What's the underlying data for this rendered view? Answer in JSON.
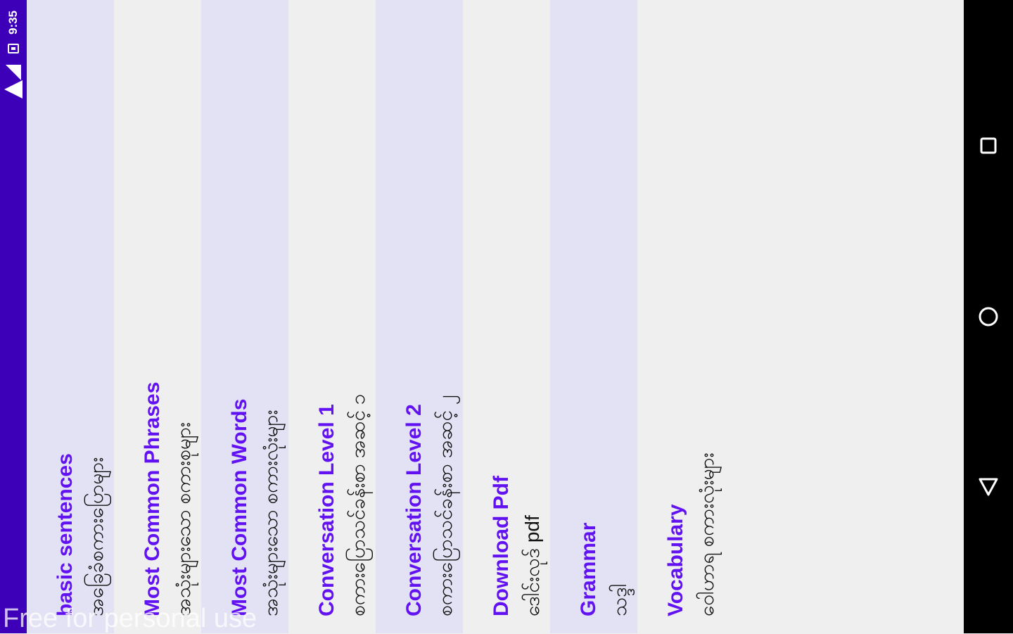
{
  "status_bar": {
    "time": "9:35",
    "icons": [
      "wifi-icon",
      "cellular-signal-icon",
      "battery-icon"
    ],
    "background": "#3d00b8"
  },
  "menu": {
    "title_color": "#6111f2",
    "items": [
      {
        "title": "basic sentences",
        "subtitle": "အခြေခံစကားပြောများ"
      },
      {
        "title": "Most Common Phrases",
        "subtitle": "အသုံးများသော စကားစုများ"
      },
      {
        "title": "Most Common Words",
        "subtitle": "အသုံးများသော စကားလုံးများ"
      },
      {
        "title": "Conversation Level 1",
        "subtitle": "စကားပြောသင်ခန်းစာ အဆင့် ၁"
      },
      {
        "title": "Conversation Level 2",
        "subtitle": "စကားပြောသင်ခန်းစာ အဆင့် ၂"
      },
      {
        "title": "Download Pdf",
        "subtitle": "ဒေါင်းလုဒ် pdf"
      },
      {
        "title": "Grammar",
        "subtitle": "သဒ္ဒါ"
      },
      {
        "title": "Vocabulary",
        "subtitle": "ဝေါဟာရ စကားလုံးများ"
      }
    ]
  },
  "watermark": "Free for personal use",
  "nav_bar": {
    "buttons": [
      "recent-apps-icon",
      "home-icon",
      "back-icon"
    ]
  }
}
